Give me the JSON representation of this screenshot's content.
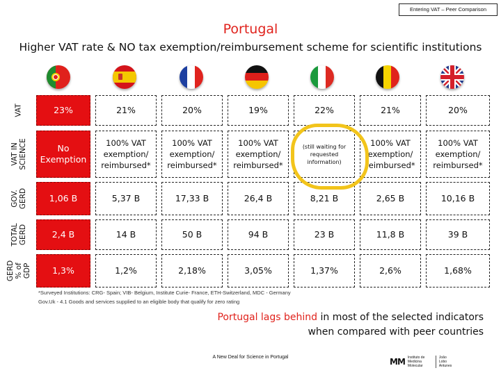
{
  "header": {
    "tag": "Entering VAT – Peer Comparison",
    "title": "Portugal",
    "subtitle": "Higher VAT rate & NO tax exemption/reimbursement scheme for scientific institutions"
  },
  "countries": [
    {
      "name": "Portugal",
      "icon": "portugal-flag-icon"
    },
    {
      "name": "Spain",
      "icon": "spain-flag-icon"
    },
    {
      "name": "France",
      "icon": "france-flag-icon"
    },
    {
      "name": "Germany",
      "icon": "germany-flag-icon"
    },
    {
      "name": "Italy",
      "icon": "italy-flag-icon"
    },
    {
      "name": "Belgium",
      "icon": "belgium-flag-icon"
    },
    {
      "name": "United Kingdom",
      "icon": "uk-flag-icon"
    }
  ],
  "rows": [
    {
      "label": "VAT",
      "values": [
        "23%",
        "21%",
        "20%",
        "19%",
        "22%",
        "21%",
        "20%"
      ]
    },
    {
      "label": "VAT IN SCIENCE",
      "values": [
        "No Exemption",
        "100% VAT exemption/ reimbursed*",
        "100% VAT exemption/ reimbursed*",
        "100% VAT exemption/ reimbursed*",
        "(still waiting for requested information)",
        "100% VAT exemption/ reimbursed*",
        "100% VAT exemption/ reimbursed*"
      ]
    },
    {
      "label": "GOV. GERD",
      "values": [
        "1,06 B",
        "5,37 B",
        "17,33 B",
        "26,4 B",
        "8,21 B",
        "2,65 B",
        "10,16 B"
      ]
    },
    {
      "label": "TOTAL GERD",
      "values": [
        "2,4 B",
        "14 B",
        "50 B",
        "94 B",
        "23 B",
        "11,8 B",
        "39 B"
      ]
    },
    {
      "label": "GERD % of GDP",
      "values": [
        "1,3%",
        "1,2%",
        "2,18%",
        "3,05%",
        "1,37%",
        "2,6%",
        "1,68%"
      ]
    }
  ],
  "footnotes": {
    "line1": "*Surveyed Institutions: CRG- Spain; VIB- Belgium, Institute Curie- France, ETH-Switzerland, MDC - Germany",
    "line2": "Gov.Uk - 4.1 Goods and services supplied to an eligible body that qualify for zero rating"
  },
  "conclusion": {
    "highlight": "Portugal lags behind",
    "rest": "in most of the selected indicators",
    "line2": "when compared with peer countries"
  },
  "footer": {
    "text": "A New Deal for Science in Portugal",
    "logo_mark": "MM",
    "logo_institute": "Instituto de Medicina Molecular",
    "logo_name": "João Lobo Antunes"
  },
  "colors": {
    "accent_red": "#e0221c",
    "portugal_cell": "#e40f12",
    "highlight_circle": "#f2c41b"
  }
}
